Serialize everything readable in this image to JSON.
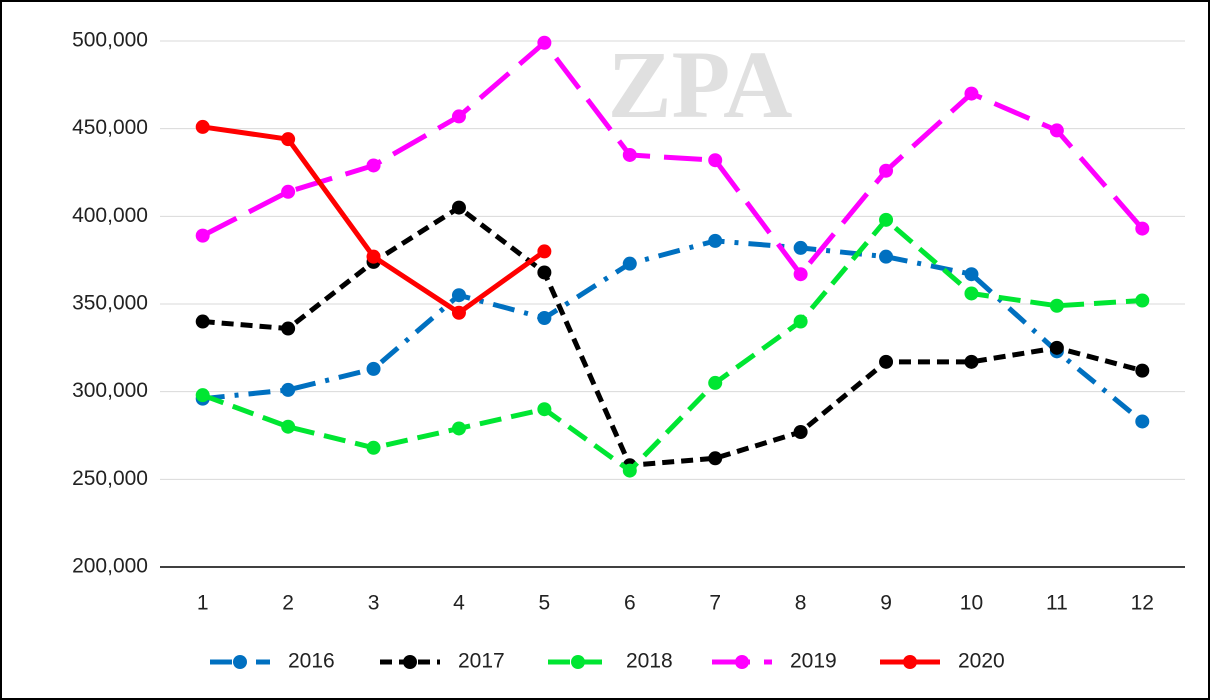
{
  "chart_data": {
    "type": "line",
    "watermark": "ZPA",
    "categories": [
      "1",
      "2",
      "3",
      "4",
      "5",
      "6",
      "7",
      "8",
      "9",
      "10",
      "11",
      "12"
    ],
    "series": [
      {
        "name": "2016",
        "color": "#0070c0",
        "line_style": "dash-dot",
        "values": [
          296000,
          301000,
          313000,
          355000,
          342000,
          373000,
          386000,
          382000,
          377000,
          367000,
          323000,
          283000
        ]
      },
      {
        "name": "2017",
        "color": "#000000",
        "line_style": "short-dash",
        "values": [
          340000,
          336000,
          374000,
          405000,
          368000,
          258000,
          262000,
          277000,
          317000,
          317000,
          325000,
          312000
        ]
      },
      {
        "name": "2018",
        "color": "#00e632",
        "line_style": "dash",
        "values": [
          298000,
          280000,
          268000,
          279000,
          290000,
          255000,
          305000,
          340000,
          398000,
          356000,
          349000,
          352000
        ]
      },
      {
        "name": "2019",
        "color": "#ff00ff",
        "line_style": "long-dash",
        "values": [
          389000,
          414000,
          429000,
          457000,
          499000,
          435000,
          432000,
          367000,
          426000,
          470000,
          449000,
          393000
        ]
      },
      {
        "name": "2020",
        "color": "#ff0000",
        "line_style": "solid",
        "values": [
          451000,
          444000,
          377000,
          345000,
          380000,
          null,
          null,
          null,
          null,
          null,
          null,
          null
        ]
      }
    ],
    "ylim": [
      200000,
      500000
    ],
    "yticks": [
      {
        "value": 200000,
        "label": "200,000"
      },
      {
        "value": 250000,
        "label": "250,000"
      },
      {
        "value": 300000,
        "label": "300,000"
      },
      {
        "value": 350000,
        "label": "350,000"
      },
      {
        "value": 400000,
        "label": "400,000"
      },
      {
        "value": 450000,
        "label": "450,000"
      },
      {
        "value": 500000,
        "label": "500,000"
      }
    ],
    "grid": true,
    "legend": "bottom"
  }
}
